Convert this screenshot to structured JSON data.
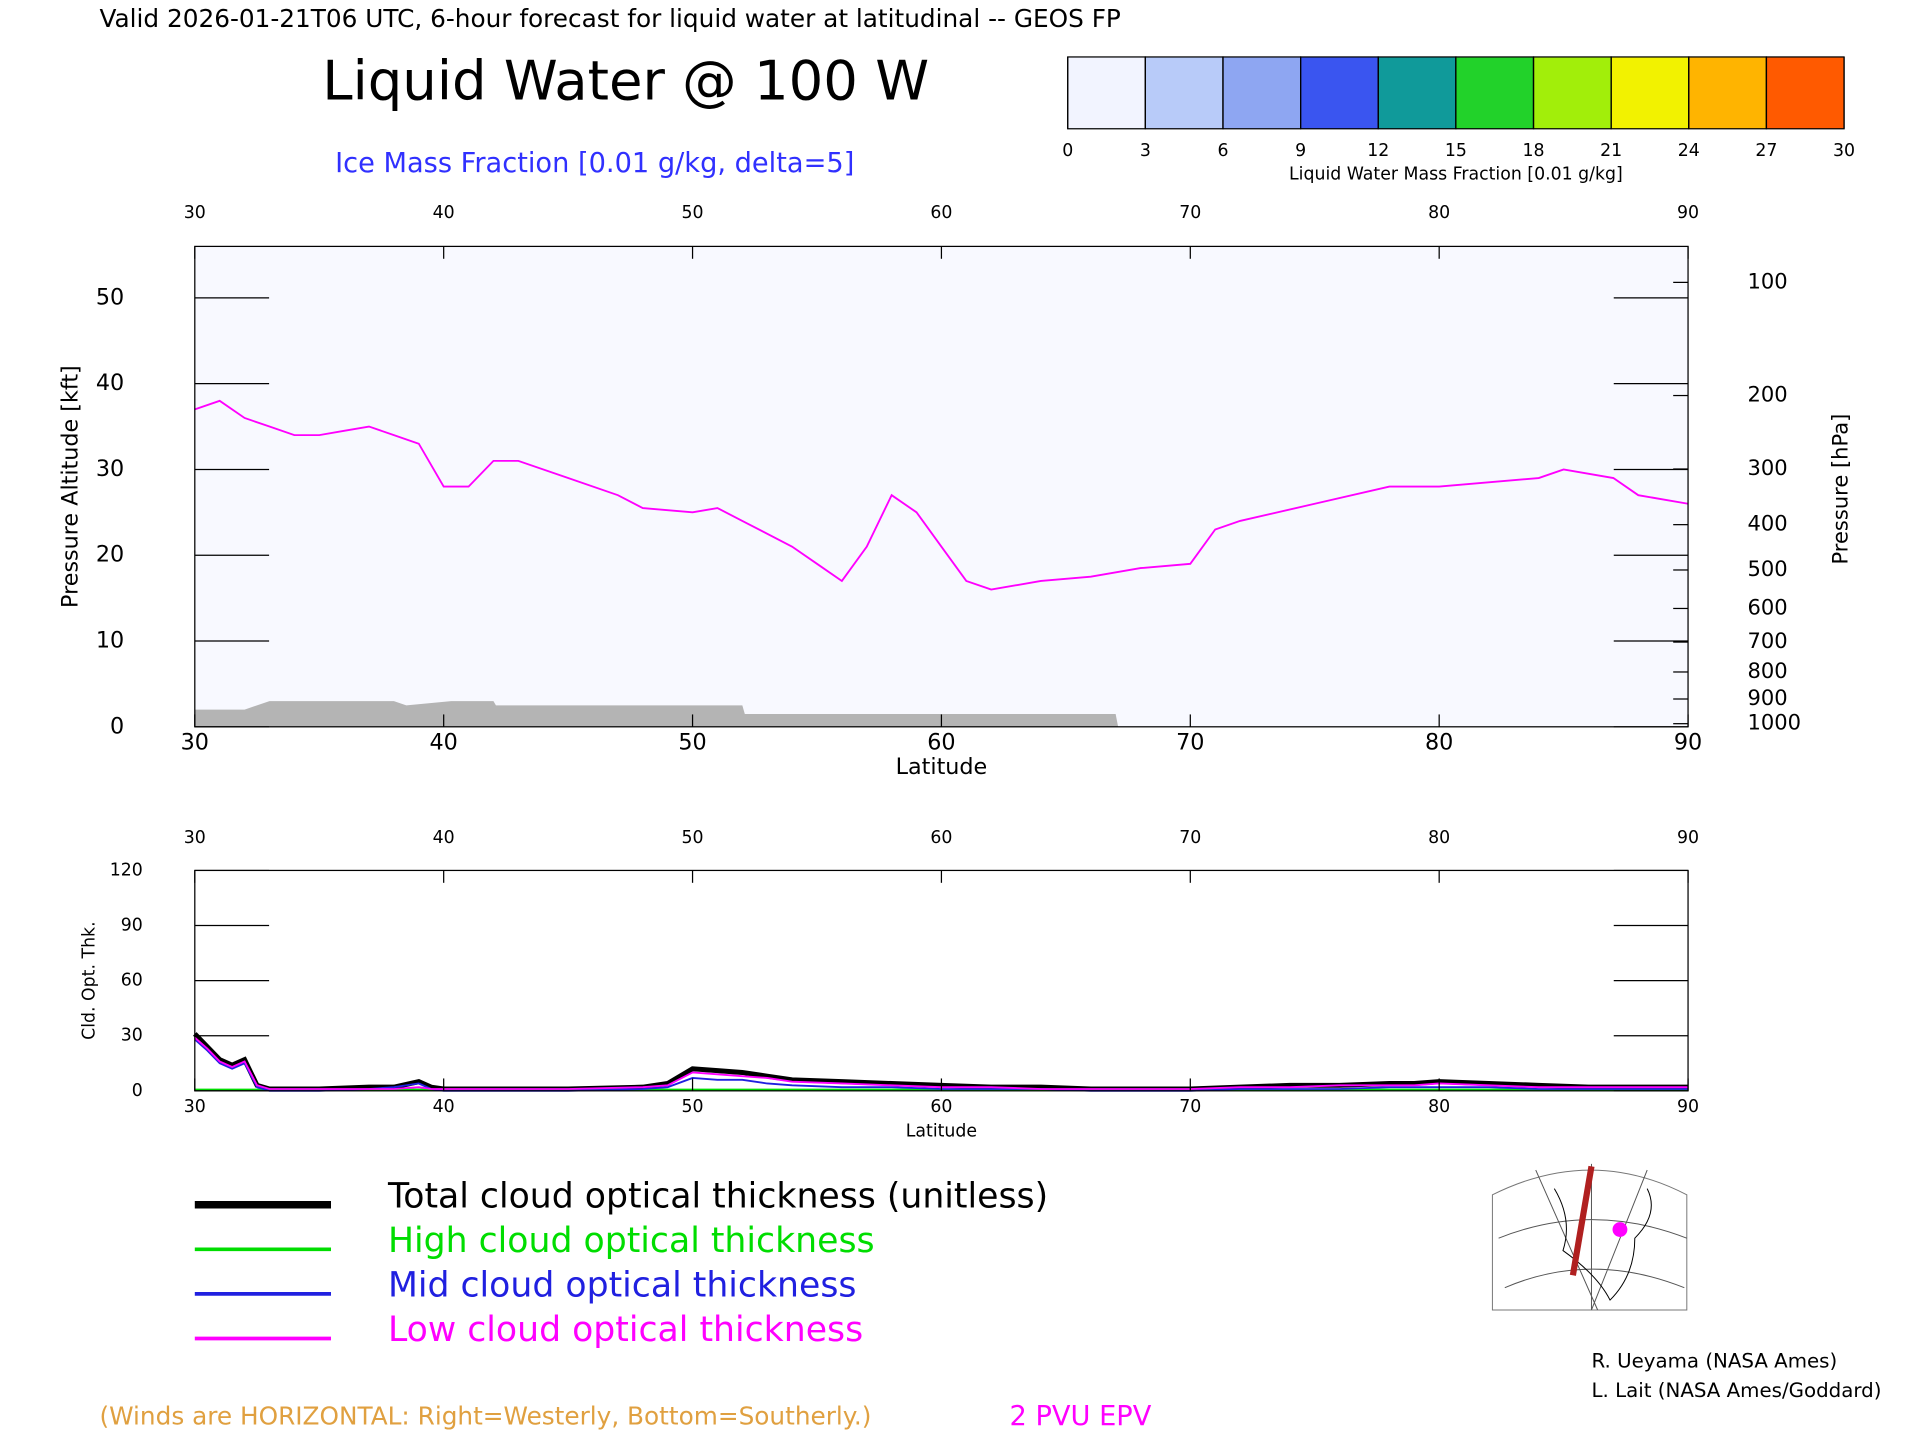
{
  "header": "Valid 2026-01-21T06 UTC, 6-hour forecast for liquid water at latitudinal -- GEOS FP",
  "chart_data": [
    {
      "type": "line",
      "title": "Liquid Water @ 100 W",
      "subtitle": "Ice Mass Fraction [0.01 g/kg, delta=5]",
      "x_label": "Latitude",
      "y_label": "Pressure Altitude [kft]",
      "y2_label": "Pressure [hPa]",
      "xlim": [
        30,
        90
      ],
      "xticks": [
        30,
        40,
        50,
        60,
        70,
        80,
        90
      ],
      "ylim": [
        0,
        56
      ],
      "yticks": [
        0,
        10,
        20,
        30,
        40,
        50
      ],
      "y2lim": [
        1013.25,
        79
      ],
      "y2ticks": [
        100,
        200,
        300,
        400,
        500,
        600,
        700,
        800,
        900,
        1000
      ],
      "y2_scale": "pressure-altitude",
      "series": [
        {
          "name": "2 PVU EPV",
          "color": "#ff00ff",
          "x": [
            30,
            31,
            32,
            33,
            34,
            35,
            36,
            37,
            38,
            39,
            40,
            41,
            42,
            43,
            45,
            47,
            48,
            50,
            51,
            52,
            54,
            55,
            56,
            57,
            58,
            59,
            60,
            61,
            62,
            64,
            66,
            68,
            70,
            71,
            72,
            75,
            78,
            80,
            84,
            85,
            87,
            88,
            90
          ],
          "values": [
            37,
            38,
            36,
            35,
            34,
            34,
            34.5,
            35,
            34,
            33,
            28,
            28,
            31,
            31,
            29,
            27,
            25.5,
            25,
            25.5,
            24,
            21,
            19,
            17,
            21,
            27,
            25,
            21,
            17,
            16,
            17,
            17.5,
            18.5,
            19,
            23,
            24,
            26,
            28,
            28,
            29,
            30,
            29,
            27,
            26
          ]
        }
      ],
      "terrain": {
        "color": "#b4b4b4",
        "x": [
          30,
          32,
          33,
          38,
          38.5,
          40.3,
          42,
          42.1,
          52,
          52.1,
          67,
          67.1
        ],
        "values": [
          2,
          2,
          3,
          3,
          2.5,
          3,
          3,
          2.5,
          2.5,
          1.5,
          1.5,
          0
        ]
      },
      "colorbar": {
        "label": "Liquid Water Mass Fraction [0.01 g/kg]",
        "ticks": [
          0,
          3,
          6,
          9,
          12,
          15,
          18,
          21,
          24,
          27,
          30
        ],
        "colors": [
          "#f2f4ff",
          "#b8cbf9",
          "#8ea6f2",
          "#3a55f0",
          "#109a9a",
          "#22d22a",
          "#a2ee0a",
          "#f2f200",
          "#ffb400",
          "#ff5a00"
        ]
      }
    },
    {
      "type": "line",
      "x_label": "Latitude",
      "y_label": "Cld. Opt. Thk.",
      "xlim": [
        30,
        90
      ],
      "xticks": [
        30,
        40,
        50,
        60,
        70,
        80,
        90
      ],
      "ylim": [
        0,
        120
      ],
      "yticks": [
        0,
        30,
        60,
        90,
        120
      ],
      "series": [
        {
          "name": "Total cloud optical thickness (unitless)",
          "color": "#000000",
          "x": [
            30,
            30.5,
            31,
            31.5,
            32,
            32.5,
            33,
            35,
            37,
            38,
            39,
            39.5,
            40,
            45,
            48,
            49,
            50,
            51,
            52,
            53,
            54,
            56,
            58,
            60,
            62,
            64,
            66,
            68,
            70,
            72,
            74,
            76,
            78,
            79,
            80,
            82,
            84,
            86,
            88,
            90
          ],
          "values": [
            31,
            24,
            17,
            14,
            17,
            3,
            1,
            1,
            2,
            2,
            5,
            2,
            1,
            1,
            2,
            4,
            12,
            11,
            10,
            8,
            6,
            5,
            4,
            3,
            2,
            2,
            1,
            1,
            1,
            2,
            3,
            3,
            4,
            4,
            5,
            4,
            3,
            2,
            2,
            2
          ]
        },
        {
          "name": "High cloud optical thickness",
          "color": "#00dd00",
          "x": [
            30,
            30.5,
            31,
            31.5,
            32,
            32.5,
            33,
            35,
            37,
            38,
            39,
            39.5,
            40,
            45,
            48,
            49,
            50,
            51,
            52,
            53,
            54,
            56,
            58,
            60,
            62,
            64,
            66,
            68,
            70,
            72,
            74,
            76,
            78,
            79,
            80,
            82,
            84,
            86,
            88,
            90
          ],
          "values": [
            0.5,
            0.5,
            0.5,
            0.5,
            0.5,
            0.5,
            0.5,
            0.5,
            0.5,
            0.5,
            0.5,
            0.5,
            0.5,
            0.5,
            0.5,
            0.5,
            0.5,
            0.5,
            0.5,
            0.5,
            0.5,
            0.5,
            0.5,
            0.5,
            0.5,
            0.5,
            0.5,
            0.5,
            0.5,
            0.5,
            0.5,
            0.5,
            0.5,
            0.5,
            0.5,
            0.5,
            0.5,
            0.5,
            0.5,
            0.5
          ]
        },
        {
          "name": "Mid cloud optical thickness",
          "color": "#2020e0",
          "x": [
            30,
            30.5,
            31,
            31.5,
            32,
            32.5,
            33,
            35,
            37,
            38,
            39,
            39.5,
            40,
            45,
            48,
            49,
            50,
            51,
            52,
            53,
            54,
            56,
            58,
            60,
            62,
            64,
            66,
            68,
            70,
            72,
            74,
            76,
            78,
            79,
            80,
            82,
            84,
            86,
            88,
            90
          ],
          "values": [
            28,
            22,
            15,
            12,
            15,
            2,
            0,
            0,
            1,
            2,
            4,
            1,
            0,
            0,
            1,
            2,
            7,
            6,
            6,
            4,
            3,
            2,
            2,
            1,
            1,
            1,
            0,
            0,
            0,
            1,
            1,
            1,
            2,
            2,
            2,
            2,
            1,
            1,
            1,
            1
          ]
        },
        {
          "name": "Low cloud optical thickness",
          "color": "#ff00ff",
          "x": [
            30,
            30.5,
            31,
            31.5,
            32,
            32.5,
            33,
            35,
            37,
            38,
            39,
            39.5,
            40,
            45,
            48,
            49,
            50,
            51,
            52,
            53,
            54,
            56,
            58,
            60,
            62,
            64,
            66,
            68,
            70,
            72,
            74,
            76,
            78,
            79,
            80,
            82,
            84,
            86,
            88,
            90
          ],
          "values": [
            29,
            23,
            16,
            13,
            16,
            3,
            1,
            1,
            1,
            1,
            2,
            1,
            1,
            1,
            2,
            3,
            10,
            9,
            8,
            7,
            5,
            4,
            3,
            2,
            2,
            1,
            1,
            1,
            1,
            2,
            2,
            3,
            3,
            3,
            4,
            3,
            2,
            2,
            2,
            2
          ]
        }
      ]
    }
  ],
  "footer": {
    "winds_note": "(Winds are HORIZONTAL: Right=Westerly, Bottom=Southerly.)",
    "credits": [
      "R. Ueyama (NASA Ames)",
      "L. Lait (NASA Ames/Goddard)"
    ]
  }
}
